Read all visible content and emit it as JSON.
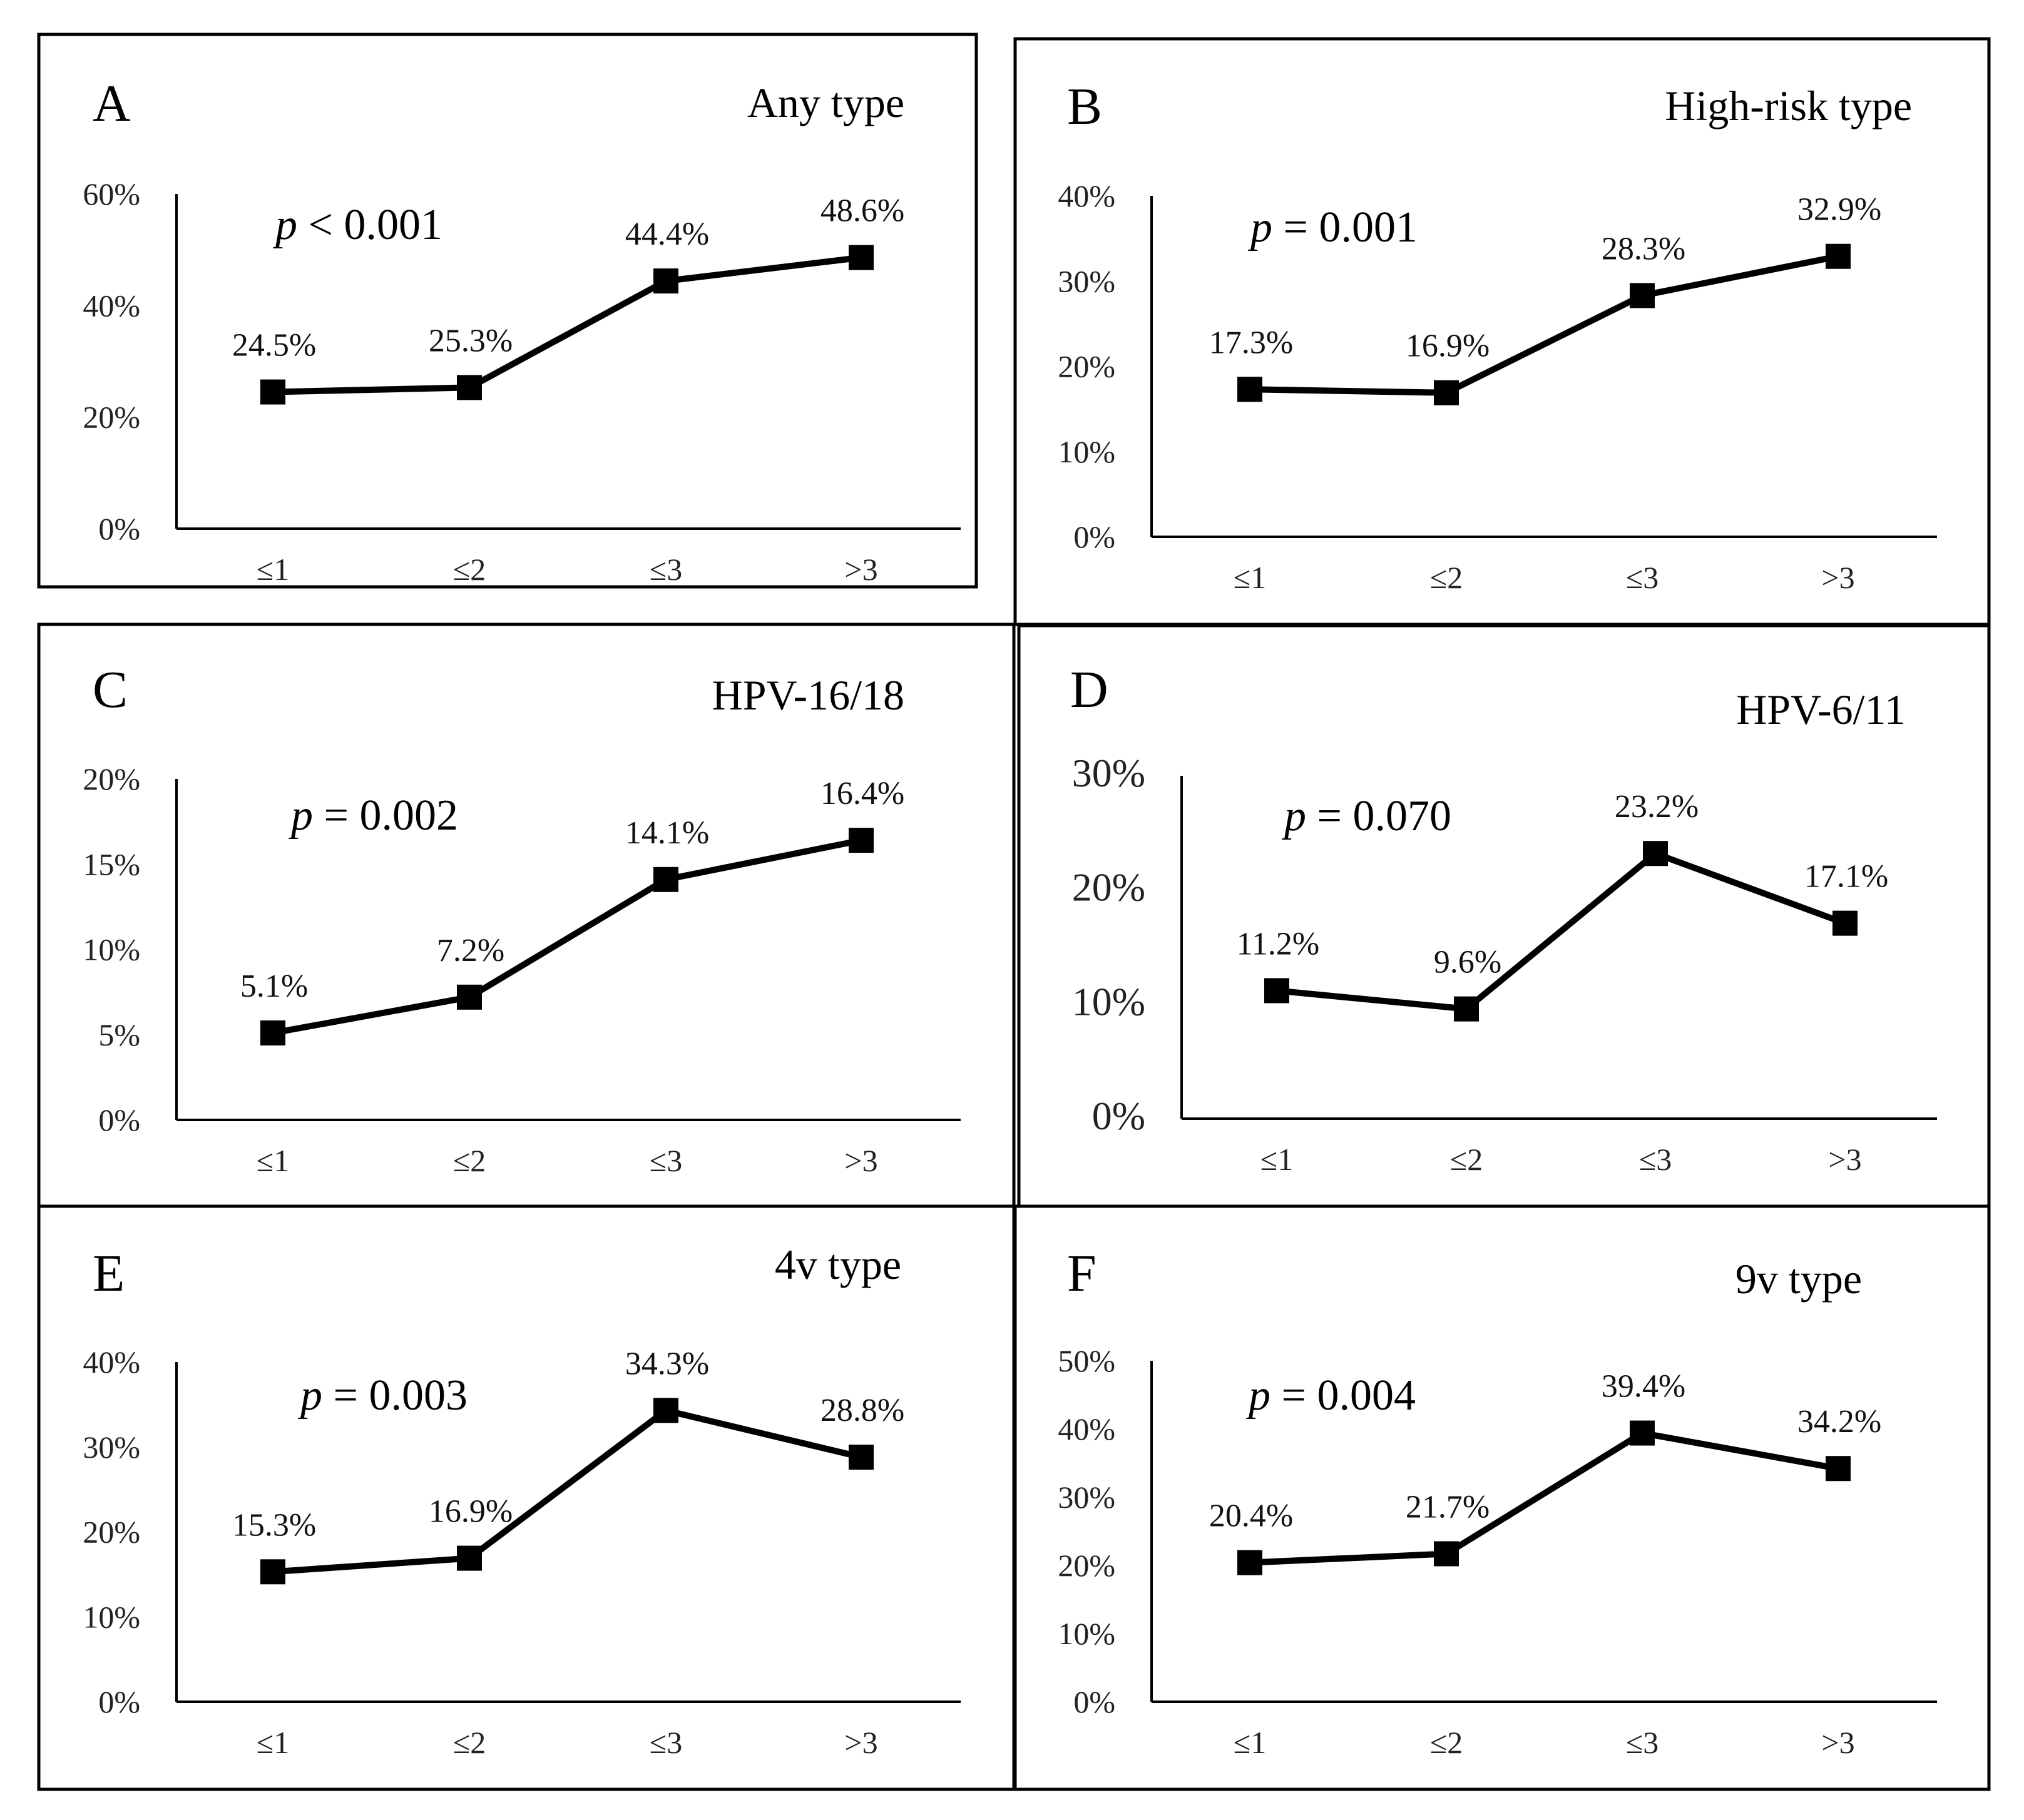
{
  "figure": {
    "categories": [
      "≤1",
      "≤2",
      "≤3",
      ">3"
    ]
  },
  "chart_data": [
    {
      "type": "line",
      "panel": "A",
      "title": "Any type",
      "p_label": "p",
      "p_value": "< 0.001",
      "categories": [
        "≤1",
        "≤2",
        "≤3",
        ">3"
      ],
      "values": [
        24.5,
        25.3,
        44.4,
        48.6
      ],
      "data_labels": [
        "24.5%",
        "25.3%",
        "44.4%",
        "48.6%"
      ],
      "yticks": [
        "0%",
        "20%",
        "40%",
        "60%"
      ],
      "ylim": [
        0,
        60
      ],
      "xlabel": "",
      "ylabel": ""
    },
    {
      "type": "line",
      "panel": "B",
      "title": "High-risk type",
      "p_label": "p",
      "p_value": "= 0.001",
      "categories": [
        "≤1",
        "≤2",
        "≤3",
        ">3"
      ],
      "values": [
        17.3,
        16.9,
        28.3,
        32.9
      ],
      "data_labels": [
        "17.3%",
        "16.9%",
        "28.3%",
        "32.9%"
      ],
      "yticks": [
        "0%",
        "10%",
        "20%",
        "30%",
        "40%"
      ],
      "ylim": [
        0,
        40
      ],
      "xlabel": "",
      "ylabel": ""
    },
    {
      "type": "line",
      "panel": "C",
      "title": "HPV-16/18",
      "p_label": "p",
      "p_value": "= 0.002",
      "categories": [
        "≤1",
        "≤2",
        "≤3",
        ">3"
      ],
      "values": [
        5.1,
        7.2,
        14.1,
        16.4
      ],
      "data_labels": [
        "5.1%",
        "7.2%",
        "14.1%",
        "16.4%"
      ],
      "yticks": [
        "0%",
        "5%",
        "10%",
        "15%",
        "20%"
      ],
      "ylim": [
        0,
        20
      ],
      "xlabel": "",
      "ylabel": ""
    },
    {
      "type": "line",
      "panel": "D",
      "title": "HPV-6/11",
      "p_label": "p",
      "p_value": "= 0.070",
      "categories": [
        "≤1",
        "≤2",
        "≤3",
        ">3"
      ],
      "values": [
        11.2,
        9.6,
        23.2,
        17.1
      ],
      "data_labels": [
        "11.2%",
        "9.6%",
        "23.2%",
        "17.1%"
      ],
      "yticks": [
        "0%",
        "10%",
        "20%",
        "30%"
      ],
      "ylim": [
        0,
        30
      ],
      "xlabel": "",
      "ylabel": ""
    },
    {
      "type": "line",
      "panel": "E",
      "title": "4v type",
      "p_label": "p",
      "p_value": "= 0.003",
      "categories": [
        "≤1",
        "≤2",
        "≤3",
        ">3"
      ],
      "values": [
        15.3,
        16.9,
        34.3,
        28.8
      ],
      "data_labels": [
        "15.3%",
        "16.9%",
        "34.3%",
        "28.8%"
      ],
      "yticks": [
        "0%",
        "10%",
        "20%",
        "30%",
        "40%"
      ],
      "ylim": [
        0,
        40
      ],
      "xlabel": "",
      "ylabel": ""
    },
    {
      "type": "line",
      "panel": "F",
      "title": "9v type",
      "p_label": "p",
      "p_value": "= 0.004",
      "categories": [
        "≤1",
        "≤2",
        "≤3",
        ">3"
      ],
      "values": [
        20.4,
        21.7,
        39.4,
        34.2
      ],
      "data_labels": [
        "20.4%",
        "21.7%",
        "39.4%",
        "34.2%"
      ],
      "yticks": [
        "0%",
        "10%",
        "20%",
        "30%",
        "40%",
        "50%"
      ],
      "ylim": [
        0,
        50
      ],
      "xlabel": "",
      "ylabel": ""
    }
  ]
}
